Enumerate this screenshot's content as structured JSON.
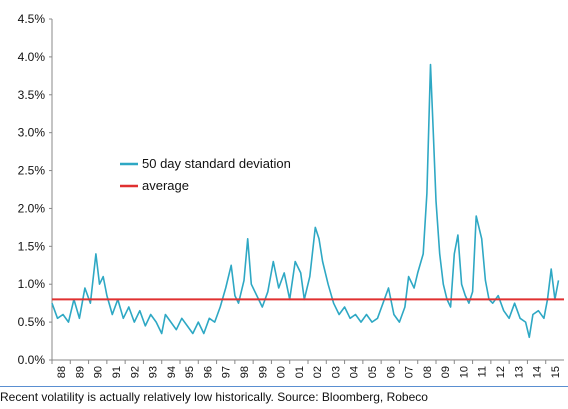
{
  "chart_data": {
    "type": "line",
    "title": "",
    "xlabel": "",
    "ylabel": "",
    "ylim": [
      0,
      4.5
    ],
    "xlim": [
      1988,
      2016
    ],
    "y_ticks": [
      "0.0%",
      "0.5%",
      "1.0%",
      "1.5%",
      "2.0%",
      "2.5%",
      "3.0%",
      "3.5%",
      "4.0%",
      "4.5%"
    ],
    "x_ticks": [
      "88",
      "89",
      "90",
      "91",
      "92",
      "93",
      "94",
      "95",
      "96",
      "97",
      "98",
      "99",
      "00",
      "01",
      "02",
      "03",
      "04",
      "05",
      "06",
      "07",
      "08",
      "09",
      "10",
      "11",
      "12",
      "13",
      "14",
      "15"
    ],
    "legend_position": "upper-left",
    "grid": false,
    "series": [
      {
        "name": "50 day standard deviation",
        "color": "#2ea8c4",
        "x": [
          1988.0,
          1988.3,
          1988.6,
          1988.9,
          1989.2,
          1989.5,
          1989.8,
          1990.1,
          1990.4,
          1990.6,
          1990.8,
          1991.0,
          1991.3,
          1991.6,
          1991.9,
          1992.2,
          1992.5,
          1992.8,
          1993.1,
          1993.4,
          1993.7,
          1994.0,
          1994.2,
          1994.5,
          1994.8,
          1995.1,
          1995.4,
          1995.7,
          1996.0,
          1996.3,
          1996.6,
          1996.9,
          1997.2,
          1997.5,
          1997.8,
          1998.0,
          1998.2,
          1998.5,
          1998.7,
          1998.9,
          1999.2,
          1999.5,
          1999.8,
          2000.1,
          2000.4,
          2000.7,
          2001.0,
          2001.3,
          2001.6,
          2001.8,
          2002.1,
          2002.4,
          2002.6,
          2002.8,
          2003.1,
          2003.4,
          2003.7,
          2004.0,
          2004.3,
          2004.6,
          2004.9,
          2005.2,
          2005.5,
          2005.8,
          2006.1,
          2006.4,
          2006.7,
          2007.0,
          2007.3,
          2007.5,
          2007.8,
          2008.0,
          2008.3,
          2008.5,
          2008.7,
          2008.85,
          2009.0,
          2009.2,
          2009.4,
          2009.6,
          2009.8,
          2010.0,
          2010.2,
          2010.4,
          2010.6,
          2010.8,
          2011.0,
          2011.2,
          2011.5,
          2011.7,
          2011.9,
          2012.1,
          2012.4,
          2012.7,
          2013.0,
          2013.3,
          2013.6,
          2013.9,
          2014.1,
          2014.3,
          2014.6,
          2014.9,
          2015.1,
          2015.3,
          2015.5,
          2015.7
        ],
        "values": [
          0.75,
          0.55,
          0.6,
          0.5,
          0.8,
          0.55,
          0.95,
          0.75,
          1.4,
          1.0,
          1.1,
          0.85,
          0.6,
          0.8,
          0.55,
          0.7,
          0.5,
          0.65,
          0.45,
          0.6,
          0.5,
          0.35,
          0.6,
          0.5,
          0.4,
          0.55,
          0.45,
          0.35,
          0.5,
          0.35,
          0.55,
          0.5,
          0.7,
          0.95,
          1.25,
          0.85,
          0.75,
          1.05,
          1.6,
          1.0,
          0.85,
          0.7,
          0.9,
          1.3,
          0.95,
          1.15,
          0.8,
          1.3,
          1.15,
          0.8,
          1.1,
          1.75,
          1.6,
          1.3,
          1.0,
          0.75,
          0.6,
          0.7,
          0.55,
          0.6,
          0.5,
          0.6,
          0.5,
          0.55,
          0.75,
          0.95,
          0.6,
          0.5,
          0.7,
          1.1,
          0.95,
          1.15,
          1.4,
          2.2,
          3.9,
          3.0,
          2.1,
          1.4,
          1.0,
          0.8,
          0.7,
          1.4,
          1.65,
          1.0,
          0.85,
          0.75,
          0.9,
          1.9,
          1.6,
          1.05,
          0.8,
          0.75,
          0.85,
          0.65,
          0.55,
          0.75,
          0.55,
          0.5,
          0.3,
          0.6,
          0.65,
          0.55,
          0.8,
          1.2,
          0.8,
          1.05
        ]
      },
      {
        "name": "average",
        "color": "#e03030",
        "x": [
          1988,
          2016
        ],
        "values": [
          0.8,
          0.8
        ]
      }
    ]
  },
  "caption": "Recent volatility is actually relatively low historically. Source: Bloomberg, Robeco"
}
